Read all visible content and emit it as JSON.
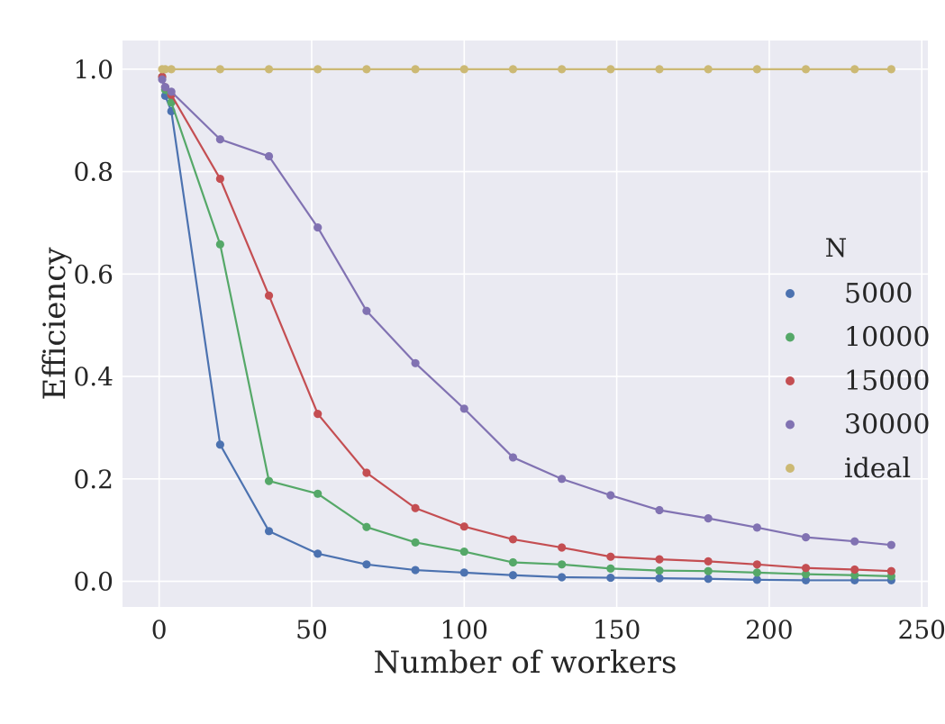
{
  "chart_data": {
    "type": "line",
    "title": "",
    "xlabel": "Number of workers",
    "ylabel": "Efficiency",
    "xlim": [
      -12,
      252
    ],
    "ylim": [
      -0.05,
      1.056
    ],
    "xticks": [
      0,
      50,
      100,
      150,
      200,
      250
    ],
    "xtick_labels": [
      "0",
      "50",
      "100",
      "150",
      "200",
      "250"
    ],
    "yticks": [
      0.0,
      0.2,
      0.4,
      0.6,
      0.8,
      1.0
    ],
    "ytick_labels": [
      "0.0",
      "0.2",
      "0.4",
      "0.6",
      "0.8",
      "1.0"
    ],
    "grid": true,
    "legend": {
      "title": "N",
      "placement": "center-right"
    },
    "background_color": "#eaeaf2",
    "grid_color": "#ffffff",
    "series": [
      {
        "name": "5000",
        "color": "#4c72b0",
        "x": [
          1,
          2,
          4,
          20,
          36,
          52,
          68,
          84,
          100,
          116,
          132,
          148,
          164,
          180,
          196,
          212,
          228,
          240
        ],
        "y": [
          0.985,
          0.948,
          0.918,
          0.267,
          0.098,
          0.054,
          0.033,
          0.022,
          0.017,
          0.012,
          0.008,
          0.007,
          0.006,
          0.005,
          0.003,
          0.002,
          0.002,
          0.002
        ]
      },
      {
        "name": "10000",
        "color": "#55a868",
        "x": [
          1,
          2,
          4,
          20,
          36,
          52,
          68,
          84,
          100,
          116,
          132,
          148,
          164,
          180,
          196,
          212,
          228,
          240
        ],
        "y": [
          0.985,
          0.96,
          0.935,
          0.658,
          0.196,
          0.171,
          0.106,
          0.076,
          0.058,
          0.037,
          0.033,
          0.025,
          0.021,
          0.02,
          0.017,
          0.014,
          0.012,
          0.01
        ]
      },
      {
        "name": "15000",
        "color": "#c44e52",
        "x": [
          1,
          2,
          4,
          20,
          36,
          52,
          68,
          84,
          100,
          116,
          132,
          148,
          164,
          180,
          196,
          212,
          228,
          240
        ],
        "y": [
          0.985,
          0.965,
          0.95,
          0.786,
          0.558,
          0.327,
          0.212,
          0.143,
          0.107,
          0.082,
          0.066,
          0.048,
          0.043,
          0.039,
          0.033,
          0.026,
          0.023,
          0.02
        ]
      },
      {
        "name": "30000",
        "color": "#8172b2",
        "x": [
          1,
          2,
          4,
          20,
          36,
          52,
          68,
          84,
          100,
          116,
          132,
          148,
          164,
          180,
          196,
          212,
          228,
          240
        ],
        "y": [
          0.98,
          0.965,
          0.956,
          0.863,
          0.83,
          0.691,
          0.528,
          0.426,
          0.337,
          0.242,
          0.2,
          0.168,
          0.139,
          0.123,
          0.105,
          0.086,
          0.078,
          0.071
        ]
      },
      {
        "name": "ideal",
        "color": "#ccb974",
        "x": [
          1,
          2,
          4,
          20,
          36,
          52,
          68,
          84,
          100,
          116,
          132,
          148,
          164,
          180,
          196,
          212,
          228,
          240
        ],
        "y": [
          1.0,
          1.0,
          1.0,
          1.0,
          1.0,
          1.0,
          1.0,
          1.0,
          1.0,
          1.0,
          1.0,
          1.0,
          1.0,
          1.0,
          1.0,
          1.0,
          1.0,
          1.0
        ]
      }
    ]
  }
}
